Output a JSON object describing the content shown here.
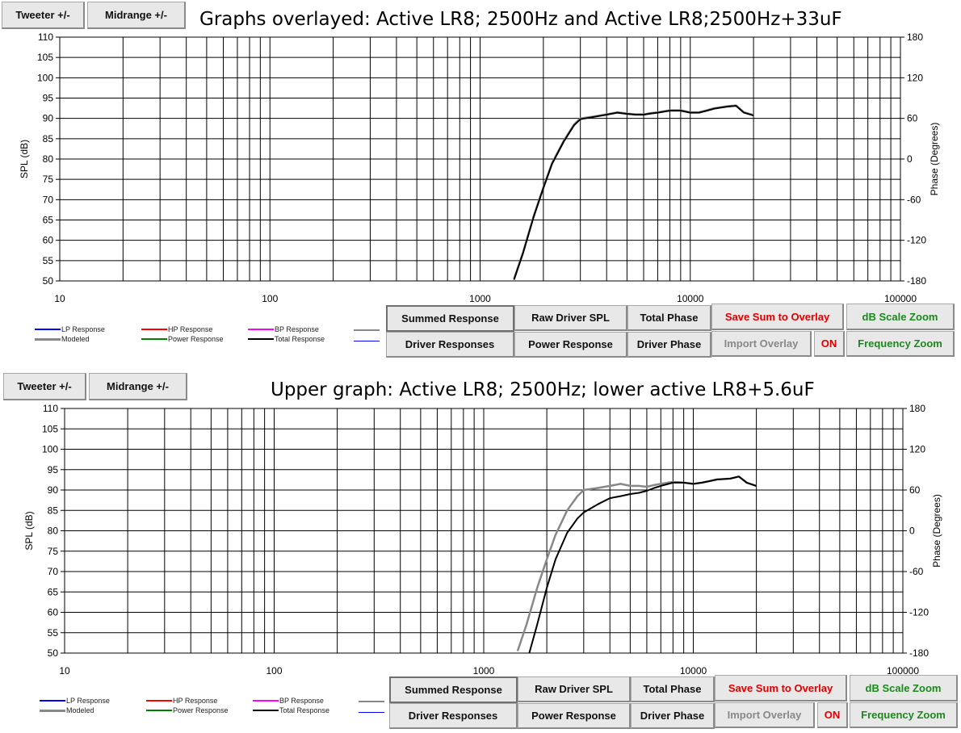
{
  "colors": {
    "lp": "#0000ff",
    "hp": "#ff0000",
    "bp": "#ff00ff",
    "modeled": "#888888",
    "power": "#008000",
    "total": "#000000",
    "red_text": "#e00000",
    "green_text": "#1a8a1a"
  },
  "panels": [
    {
      "top_buttons": {
        "tweeter": "Tweeter +/-",
        "midrange": "Midrange  +/-"
      },
      "title": "Graphs overlayed: Active LR8; 2500Hz and Active LR8;2500Hz+33uF",
      "bottom_buttons": {
        "summed_response": "Summed Response",
        "raw_driver_spl": "Raw Driver SPL",
        "total_phase": "Total Phase",
        "save_sum_to_overlay": "Save Sum to Overlay",
        "db_scale_zoom": "dB Scale Zoom",
        "driver_responses": "Driver Responses",
        "power_response": "Power Response",
        "driver_phase": "Driver Phase",
        "import_overlay": "Import Overlay",
        "on": "ON",
        "frequency_zoom": "Frequency Zoom"
      },
      "legend": {
        "lp": "LP Response",
        "hp": "HP Response",
        "bp": "BP Response",
        "modeled": "Modeled",
        "power": "Power Response",
        "total": "Total Response"
      }
    },
    {
      "top_buttons": {
        "tweeter": "Tweeter +/-",
        "midrange": "Midrange  +/-"
      },
      "title": "Upper graph: Active LR8; 2500Hz; lower active LR8+5.6uF",
      "bottom_buttons": {
        "summed_response": "Summed Response",
        "raw_driver_spl": "Raw Driver SPL",
        "total_phase": "Total Phase",
        "save_sum_to_overlay": "Save Sum to Overlay",
        "db_scale_zoom": "dB Scale Zoom",
        "driver_responses": "Driver Responses",
        "power_response": "Power Response",
        "driver_phase": "Driver Phase",
        "import_overlay": "Import Overlay",
        "on": "ON",
        "frequency_zoom": "Frequency Zoom"
      },
      "legend": {
        "lp": "LP Response",
        "hp": "HP Response",
        "bp": "BP Response",
        "modeled": "Modeled",
        "power": "Power Response",
        "total": "Total Response"
      }
    }
  ],
  "chart_data": [
    {
      "type": "line",
      "title": "Graphs overlayed: Active LR8; 2500Hz and Active LR8;2500Hz+33uF",
      "xlabel": "",
      "ylabel": "SPL (dB)",
      "y2label": "Phase (Degrees)",
      "xscale": "log",
      "xlim": [
        10,
        100000
      ],
      "ylim": [
        50,
        110
      ],
      "y2lim": [
        -180,
        180
      ],
      "x_ticks": [
        "10",
        "100",
        "1000",
        "10000",
        "100000"
      ],
      "y_ticks": [
        110,
        105,
        100,
        95,
        90,
        85,
        80,
        75,
        70,
        65,
        60,
        55,
        50
      ],
      "y2_ticks": [
        180,
        120,
        60,
        0,
        -60,
        -120,
        -180
      ],
      "grid": true,
      "series": [
        {
          "name": "Modeled",
          "color": "#888888",
          "x": [
            1450,
            1600,
            1800,
            2000,
            2200,
            2500,
            2800,
            3000,
            3500,
            4000,
            4500,
            5000,
            5500,
            6000,
            6500,
            7000,
            8000,
            9000,
            10000,
            11000,
            12000,
            13000,
            15000,
            16500,
            18000,
            20000
          ],
          "y": [
            50.5,
            57,
            66,
            73,
            79,
            84.5,
            88.5,
            90,
            90.5,
            91,
            91.5,
            91.2,
            91,
            91,
            91.3,
            91.5,
            92,
            92,
            91.5,
            91.5,
            92,
            92.5,
            93,
            93.2,
            91.5,
            90.8
          ]
        },
        {
          "name": "Total Response",
          "color": "#000000",
          "x": [
            1450,
            1600,
            1800,
            2000,
            2200,
            2500,
            2800,
            3000,
            3500,
            4000,
            4500,
            5000,
            5500,
            6000,
            6500,
            7000,
            8000,
            9000,
            10000,
            11000,
            12000,
            13000,
            15000,
            16500,
            18000,
            20000
          ],
          "y": [
            50.3,
            56.8,
            65.8,
            72.8,
            78.8,
            84.3,
            88.3,
            89.8,
            90.4,
            90.9,
            91.4,
            91.1,
            90.9,
            90.9,
            91.2,
            91.4,
            91.9,
            91.9,
            91.4,
            91.4,
            91.9,
            92.4,
            92.9,
            93.1,
            91.4,
            90.7
          ]
        }
      ]
    },
    {
      "type": "line",
      "title": "Upper graph: Active LR8; 2500Hz; lower active LR8+5.6uF",
      "xlabel": "",
      "ylabel": "SPL (dB)",
      "y2label": "Phase (Degrees)",
      "xscale": "log",
      "xlim": [
        10,
        100000
      ],
      "ylim": [
        50,
        110
      ],
      "y2lim": [
        -180,
        180
      ],
      "x_ticks": [
        "10",
        "100",
        "1000",
        "10000",
        "100000"
      ],
      "y_ticks": [
        110,
        105,
        100,
        95,
        90,
        85,
        80,
        75,
        70,
        65,
        60,
        55,
        50
      ],
      "y2_ticks": [
        180,
        120,
        60,
        0,
        -60,
        -120,
        -180
      ],
      "grid": true,
      "series": [
        {
          "name": "Modeled",
          "color": "#888888",
          "x": [
            1450,
            1600,
            1800,
            2000,
            2200,
            2500,
            2800,
            3000,
            3500,
            4000,
            4500,
            5000,
            5500,
            6000,
            6500,
            7000,
            8000,
            9000,
            10000,
            11000,
            12000,
            13000,
            15000,
            16500,
            18000,
            20000
          ],
          "y": [
            50.5,
            57,
            66,
            73,
            79,
            85,
            88.5,
            90,
            90.5,
            91,
            91.5,
            91,
            91,
            90.8,
            91.2,
            91.5,
            92,
            91.8,
            91.5,
            91.8,
            92.2,
            92.6,
            92.8,
            93.3,
            91.8,
            91
          ]
        },
        {
          "name": "Total Response",
          "color": "#000000",
          "x": [
            1650,
            1800,
            2000,
            2200,
            2500,
            2800,
            3000,
            3500,
            4000,
            4500,
            5000,
            5500,
            6000,
            6500,
            7000,
            8000,
            9000,
            10000,
            11000,
            12000,
            13000,
            15000,
            16500,
            18000,
            20000
          ],
          "y": [
            50,
            57,
            66,
            73,
            79.5,
            83,
            84.5,
            86.5,
            88,
            88.5,
            89,
            89.3,
            89.8,
            90.5,
            91,
            91.8,
            91.8,
            91.5,
            91.8,
            92.2,
            92.6,
            92.8,
            93.3,
            91.8,
            91
          ]
        }
      ]
    }
  ]
}
